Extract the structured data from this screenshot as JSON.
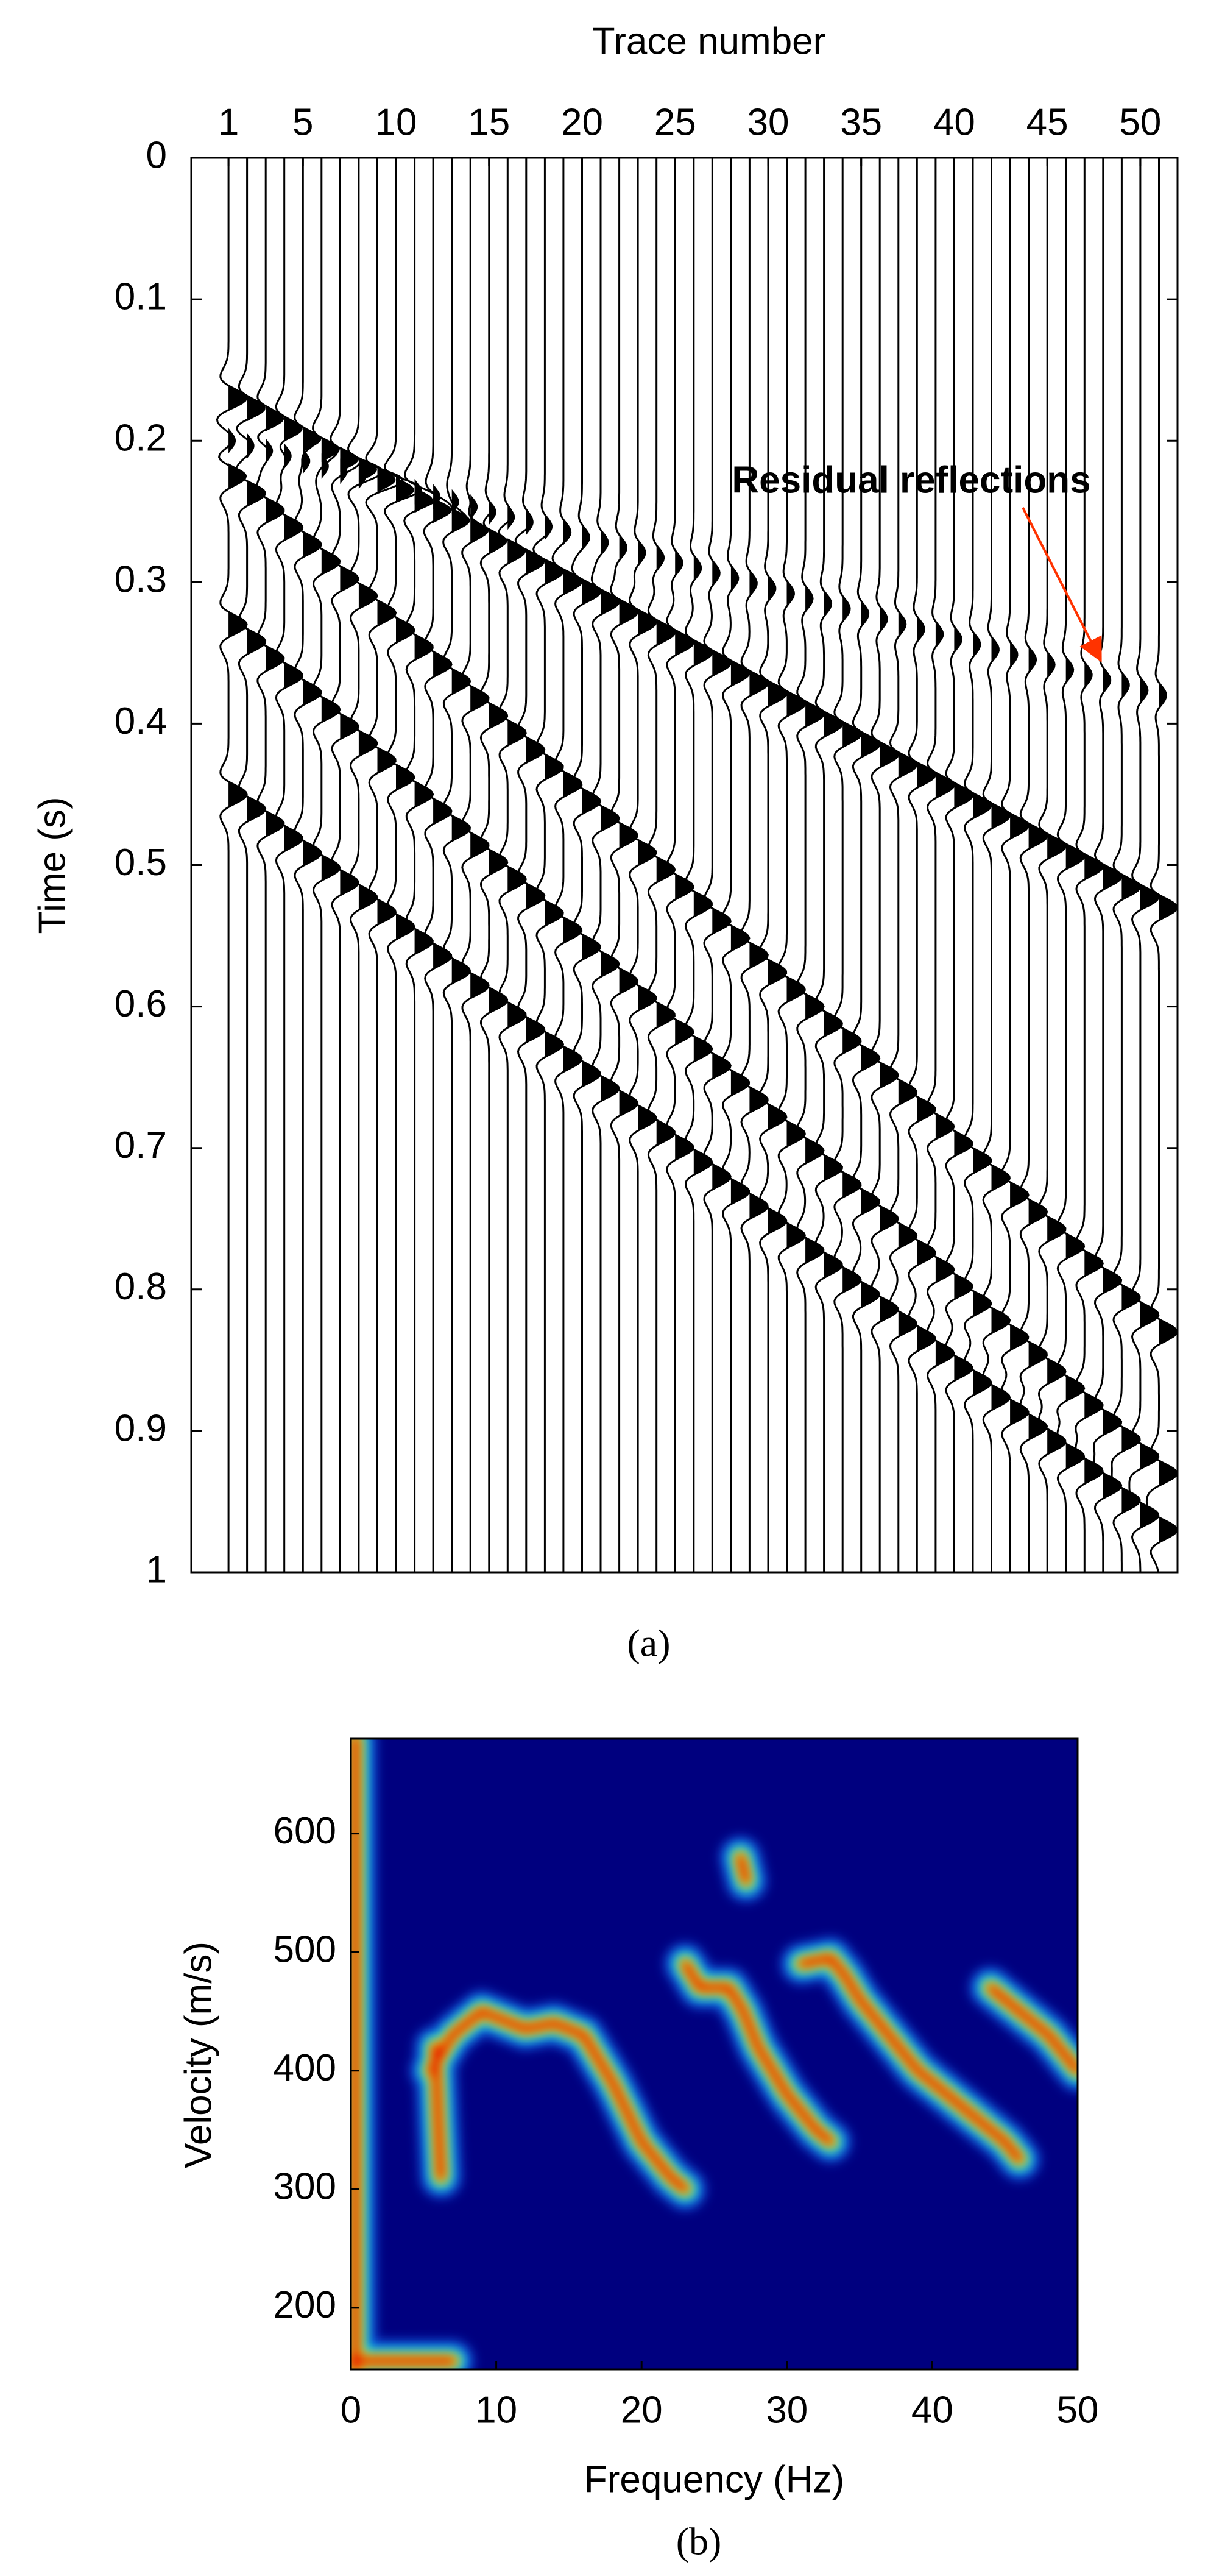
{
  "chart_data": [
    {
      "type": "wiggle",
      "xlabel": "Trace number",
      "ylabel": "Time (s)",
      "caption": "(a)",
      "annotation": "Residual reflections",
      "annotation_color": "#ff0000",
      "xlim": [
        -1,
        52
      ],
      "xticks": [
        1,
        5,
        10,
        15,
        20,
        25,
        30,
        35,
        40,
        45,
        50
      ],
      "ylim": [
        0,
        1
      ],
      "yticks": [
        0,
        0.1,
        0.2,
        0.3,
        0.4,
        0.5,
        0.6,
        0.7,
        0.8,
        0.9,
        1
      ],
      "traces": [
        1,
        2,
        3,
        4,
        5,
        6,
        7,
        8,
        9,
        10,
        11,
        12,
        13,
        14,
        15,
        16,
        17,
        18,
        19,
        20,
        21,
        22,
        23,
        24,
        25,
        26,
        27,
        28,
        29,
        30,
        31,
        32,
        33,
        34,
        35,
        36,
        37,
        38,
        39,
        40,
        41,
        42,
        43,
        44,
        45,
        46,
        47,
        48,
        49,
        50,
        51
      ],
      "events": [
        {
          "x": [
            1,
            51
          ],
          "values": [
            0.17,
            0.53
          ],
          "amplitude": 1
        },
        {
          "x": [
            1,
            51
          ],
          "values": [
            0.225,
            0.83
          ],
          "amplitude": 1
        },
        {
          "x": [
            1,
            51
          ],
          "values": [
            0.33,
            0.93
          ],
          "amplitude": 1
        },
        {
          "x": [
            1,
            51
          ],
          "values": [
            0.45,
            0.97
          ],
          "amplitude": 1
        },
        {
          "x": [
            1,
            51
          ],
          "values": [
            0.2,
            0.38
          ],
          "amplitude": 0.4
        }
      ]
    },
    {
      "type": "heatmap",
      "xlabel": "Frequency (Hz)",
      "ylabel": "Velocity (m/s)",
      "caption": "(b)",
      "xlim": [
        0,
        50
      ],
      "xticks": [
        0,
        10,
        20,
        30,
        40,
        50
      ],
      "ylim": [
        148,
        680
      ],
      "yticks": [
        200,
        300,
        400,
        500,
        600
      ],
      "background": "#00007f",
      "ridges": [
        {
          "x": [
            5.5,
            6,
            7,
            9,
            10,
            12,
            14,
            16,
            18,
            20,
            22,
            23
          ],
          "values": [
            400,
            410,
            430,
            450,
            445,
            435,
            440,
            430,
            390,
            340,
            310,
            300
          ]
        },
        {
          "x": [
            5.8,
            6,
            6.2
          ],
          "values": [
            420,
            360,
            310
          ]
        },
        {
          "x": [
            23,
            24,
            26,
            27,
            28,
            30,
            32,
            33
          ],
          "values": [
            490,
            470,
            470,
            450,
            420,
            380,
            350,
            340
          ]
        },
        {
          "x": [
            26.8,
            27.2
          ],
          "values": [
            580,
            560
          ]
        },
        {
          "x": [
            31,
            33,
            34,
            35,
            37,
            39,
            41,
            43,
            45,
            46
          ],
          "values": [
            490,
            495,
            480,
            460,
            430,
            400,
            380,
            360,
            340,
            325
          ]
        },
        {
          "x": [
            44,
            45,
            46,
            48,
            50
          ],
          "values": [
            470,
            460,
            450,
            430,
            400
          ]
        },
        {
          "x": [
            0.3,
            0.3
          ],
          "values": [
            148,
            680
          ]
        },
        {
          "x": [
            0,
            7
          ],
          "values": [
            155,
            155
          ]
        }
      ]
    }
  ]
}
